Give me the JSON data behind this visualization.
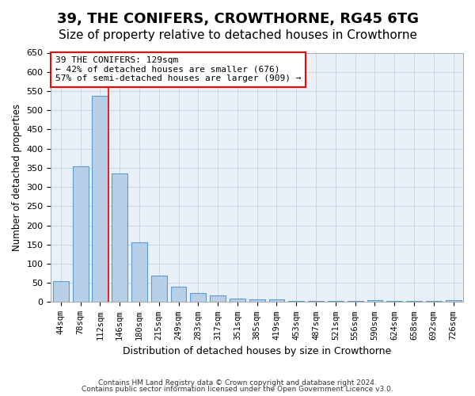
{
  "title": "39, THE CONIFERS, CROWTHORNE, RG45 6TG",
  "subtitle": "Size of property relative to detached houses in Crowthorne",
  "xlabel_bottom": "Distribution of detached houses by size in Crowthorne",
  "ylabel": "Number of detached properties",
  "categories": [
    "44sqm",
    "78sqm",
    "112sqm",
    "146sqm",
    "180sqm",
    "215sqm",
    "249sqm",
    "283sqm",
    "317sqm",
    "351sqm",
    "385sqm",
    "419sqm",
    "453sqm",
    "487sqm",
    "521sqm",
    "556sqm",
    "590sqm",
    "624sqm",
    "658sqm",
    "692sqm",
    "726sqm"
  ],
  "values": [
    55,
    353,
    538,
    335,
    155,
    68,
    40,
    23,
    18,
    10,
    8,
    8,
    3,
    3,
    3,
    3,
    5,
    3,
    3,
    3,
    5
  ],
  "bar_color": "#b8cfe8",
  "bar_edgecolor": "#5b9bd5",
  "bar_width": 0.8,
  "ylim": [
    0,
    650
  ],
  "yticks": [
    0,
    50,
    100,
    150,
    200,
    250,
    300,
    350,
    400,
    450,
    500,
    550,
    600,
    650
  ],
  "redline_x": 2.42,
  "annotation_text": "39 THE CONIFERS: 129sqm\n← 42% of detached houses are smaller (676)\n57% of semi-detached houses are larger (909) →",
  "footer1": "Contains HM Land Registry data © Crown copyright and database right 2024.",
  "footer2": "Contains public sector information licensed under the Open Government Licence v3.0.",
  "bg_color": "#ffffff",
  "axes_bg_color": "#eaf0f8",
  "grid_color": "#c8d4e8",
  "title_fontsize": 13,
  "subtitle_fontsize": 11
}
